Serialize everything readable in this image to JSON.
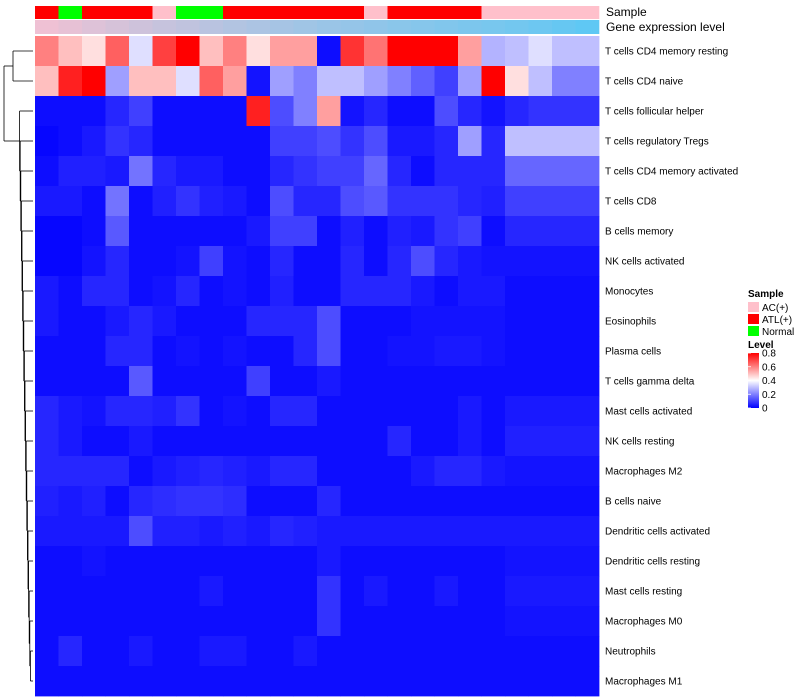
{
  "chart_data": {
    "type": "heatmap",
    "annotation_tracks": [
      {
        "name": "Sample",
        "label": "Sample"
      },
      {
        "name": "Gene expression level",
        "label": "Gene expression level"
      }
    ],
    "sample_track": [
      "ATL(+)",
      "Normal",
      "ATL(+)",
      "ATL(+)",
      "ATL(+)",
      "AC(+)",
      "Normal",
      "Normal",
      "ATL(+)",
      "ATL(+)",
      "ATL(+)",
      "ATL(+)",
      "ATL(+)",
      "ATL(+)",
      "AC(+)",
      "ATL(+)",
      "ATL(+)",
      "ATL(+)",
      "ATL(+)",
      "AC(+)",
      "AC(+)",
      "AC(+)",
      "AC(+)",
      "AC(+)"
    ],
    "expression_track": [
      0.02,
      0.04,
      0.07,
      0.1,
      0.13,
      0.17,
      0.2,
      0.24,
      0.28,
      0.32,
      0.36,
      0.4,
      0.44,
      0.48,
      0.52,
      0.56,
      0.6,
      0.64,
      0.68,
      0.72,
      0.76,
      0.82,
      0.88,
      0.95
    ],
    "rows": [
      "T cells CD4 memory resting",
      "T cells CD4 naive",
      "T cells follicular helper",
      "T cells regulatory  Tregs",
      "T cells CD4 memory activated",
      "T cells CD8",
      "B cells memory",
      "NK cells activated",
      "Monocytes",
      "Eosinophils",
      "Plasma cells",
      "T cells gamma delta",
      "Mast cells activated",
      "NK cells resting",
      "Macrophages M2",
      "B cells naive",
      "Dendritic cells activated",
      "Dendritic cells resting",
      "Mast cells resting",
      "Macrophages M0",
      "Neutrophils",
      "Macrophages M1"
    ],
    "values": [
      [
        0.6,
        0.5,
        0.45,
        0.65,
        0.35,
        0.7,
        0.8,
        0.5,
        0.6,
        0.45,
        0.55,
        0.55,
        0.02,
        0.72,
        0.62,
        0.8,
        0.8,
        0.8,
        0.55,
        0.28,
        0.3,
        0.35,
        0.3,
        0.3
      ],
      [
        0.5,
        0.75,
        0.8,
        0.25,
        0.5,
        0.5,
        0.35,
        0.65,
        0.55,
        0.03,
        0.25,
        0.2,
        0.3,
        0.3,
        0.25,
        0.2,
        0.15,
        0.1,
        0.25,
        0.8,
        0.45,
        0.3,
        0.2,
        0.2
      ],
      [
        0.02,
        0.02,
        0.02,
        0.06,
        0.1,
        0.02,
        0.02,
        0.02,
        0.02,
        0.75,
        0.12,
        0.2,
        0.55,
        0.03,
        0.06,
        0.02,
        0.02,
        0.12,
        0.06,
        0.03,
        0.06,
        0.08,
        0.08,
        0.08
      ],
      [
        0.01,
        0.02,
        0.04,
        0.08,
        0.06,
        0.02,
        0.02,
        0.02,
        0.02,
        0.02,
        0.1,
        0.1,
        0.12,
        0.08,
        0.12,
        0.04,
        0.04,
        0.06,
        0.25,
        0.06,
        0.3,
        0.3,
        0.3,
        0.3
      ],
      [
        0.02,
        0.05,
        0.05,
        0.04,
        0.18,
        0.06,
        0.04,
        0.04,
        0.02,
        0.02,
        0.06,
        0.08,
        0.1,
        0.1,
        0.16,
        0.06,
        0.02,
        0.06,
        0.06,
        0.06,
        0.16,
        0.16,
        0.16,
        0.16
      ],
      [
        0.04,
        0.04,
        0.02,
        0.18,
        0.02,
        0.05,
        0.08,
        0.05,
        0.04,
        0.02,
        0.12,
        0.06,
        0.06,
        0.12,
        0.14,
        0.08,
        0.08,
        0.08,
        0.06,
        0.05,
        0.1,
        0.1,
        0.1,
        0.1
      ],
      [
        0.01,
        0.01,
        0.02,
        0.14,
        0.02,
        0.02,
        0.02,
        0.02,
        0.02,
        0.04,
        0.1,
        0.1,
        0.02,
        0.05,
        0.02,
        0.05,
        0.04,
        0.08,
        0.1,
        0.02,
        0.06,
        0.06,
        0.06,
        0.06
      ],
      [
        0.01,
        0.01,
        0.03,
        0.06,
        0.02,
        0.02,
        0.03,
        0.1,
        0.03,
        0.02,
        0.06,
        0.02,
        0.02,
        0.06,
        0.02,
        0.06,
        0.12,
        0.06,
        0.04,
        0.03,
        0.03,
        0.03,
        0.03,
        0.03
      ],
      [
        0.04,
        0.02,
        0.06,
        0.06,
        0.02,
        0.03,
        0.06,
        0.02,
        0.03,
        0.02,
        0.05,
        0.02,
        0.02,
        0.06,
        0.06,
        0.06,
        0.04,
        0.02,
        0.04,
        0.04,
        0.02,
        0.02,
        0.02,
        0.02
      ],
      [
        0.04,
        0.02,
        0.02,
        0.04,
        0.06,
        0.04,
        0.02,
        0.02,
        0.02,
        0.06,
        0.06,
        0.06,
        0.12,
        0.02,
        0.02,
        0.02,
        0.03,
        0.03,
        0.03,
        0.03,
        0.02,
        0.02,
        0.02,
        0.02
      ],
      [
        0.02,
        0.02,
        0.02,
        0.06,
        0.06,
        0.02,
        0.03,
        0.02,
        0.03,
        0.02,
        0.02,
        0.06,
        0.12,
        0.02,
        0.02,
        0.03,
        0.03,
        0.04,
        0.04,
        0.03,
        0.02,
        0.02,
        0.02,
        0.02
      ],
      [
        0.02,
        0.02,
        0.02,
        0.02,
        0.14,
        0.02,
        0.02,
        0.02,
        0.02,
        0.1,
        0.02,
        0.02,
        0.04,
        0.02,
        0.02,
        0.02,
        0.02,
        0.02,
        0.02,
        0.02,
        0.02,
        0.02,
        0.02,
        0.02
      ],
      [
        0.06,
        0.04,
        0.03,
        0.06,
        0.06,
        0.05,
        0.08,
        0.02,
        0.03,
        0.02,
        0.06,
        0.06,
        0.02,
        0.02,
        0.02,
        0.02,
        0.02,
        0.02,
        0.04,
        0.02,
        0.04,
        0.04,
        0.04,
        0.04
      ],
      [
        0.06,
        0.04,
        0.02,
        0.02,
        0.04,
        0.02,
        0.02,
        0.02,
        0.02,
        0.02,
        0.02,
        0.02,
        0.02,
        0.02,
        0.02,
        0.06,
        0.02,
        0.02,
        0.04,
        0.02,
        0.05,
        0.05,
        0.05,
        0.05
      ],
      [
        0.06,
        0.06,
        0.06,
        0.06,
        0.02,
        0.04,
        0.05,
        0.06,
        0.05,
        0.04,
        0.06,
        0.06,
        0.02,
        0.02,
        0.02,
        0.02,
        0.04,
        0.06,
        0.06,
        0.04,
        0.03,
        0.03,
        0.03,
        0.03
      ],
      [
        0.05,
        0.04,
        0.05,
        0.02,
        0.06,
        0.07,
        0.08,
        0.08,
        0.07,
        0.02,
        0.02,
        0.02,
        0.06,
        0.02,
        0.02,
        0.02,
        0.02,
        0.02,
        0.02,
        0.02,
        0.02,
        0.02,
        0.02,
        0.02
      ],
      [
        0.04,
        0.04,
        0.04,
        0.04,
        0.12,
        0.05,
        0.05,
        0.04,
        0.05,
        0.04,
        0.06,
        0.05,
        0.04,
        0.04,
        0.04,
        0.04,
        0.04,
        0.04,
        0.04,
        0.04,
        0.04,
        0.04,
        0.04,
        0.04
      ],
      [
        0.02,
        0.02,
        0.03,
        0.02,
        0.02,
        0.02,
        0.02,
        0.02,
        0.02,
        0.02,
        0.02,
        0.02,
        0.04,
        0.02,
        0.02,
        0.02,
        0.02,
        0.02,
        0.02,
        0.02,
        0.03,
        0.03,
        0.03,
        0.03
      ],
      [
        0.02,
        0.02,
        0.02,
        0.02,
        0.02,
        0.02,
        0.02,
        0.04,
        0.02,
        0.02,
        0.02,
        0.02,
        0.08,
        0.02,
        0.04,
        0.02,
        0.02,
        0.04,
        0.02,
        0.02,
        0.04,
        0.04,
        0.04,
        0.04
      ],
      [
        0.02,
        0.02,
        0.02,
        0.02,
        0.02,
        0.02,
        0.02,
        0.02,
        0.02,
        0.02,
        0.02,
        0.02,
        0.08,
        0.02,
        0.02,
        0.02,
        0.02,
        0.02,
        0.02,
        0.02,
        0.03,
        0.03,
        0.03,
        0.03
      ],
      [
        0.02,
        0.06,
        0.02,
        0.02,
        0.04,
        0.02,
        0.02,
        0.04,
        0.04,
        0.02,
        0.02,
        0.04,
        0.02,
        0.02,
        0.02,
        0.02,
        0.02,
        0.02,
        0.02,
        0.02,
        0.02,
        0.02,
        0.02,
        0.02
      ],
      [
        0.02,
        0.02,
        0.02,
        0.02,
        0.02,
        0.02,
        0.02,
        0.02,
        0.02,
        0.02,
        0.02,
        0.02,
        0.02,
        0.02,
        0.02,
        0.02,
        0.02,
        0.02,
        0.02,
        0.02,
        0.02,
        0.02,
        0.02,
        0.02
      ]
    ],
    "sample_legend": {
      "title": "Sample",
      "items": [
        {
          "label": "AC(+)",
          "color": "#ffc0cb"
        },
        {
          "label": "ATL(+)",
          "color": "#ff0000"
        },
        {
          "label": "Normal",
          "color": "#00ff00"
        }
      ]
    },
    "level_legend": {
      "title": "Level",
      "ticks": [
        "0.8",
        "0.6",
        "0.4",
        "0.2",
        "0"
      ],
      "tick_values": [
        0.8,
        0.6,
        0.4,
        0.2,
        0
      ],
      "range": [
        0,
        0.8
      ],
      "colors": {
        "low": "#0000ff",
        "mid": "#ffffff",
        "high": "#ff0000"
      }
    },
    "expression_colors": {
      "low": "#ffc0d0",
      "high": "#5ac8f5"
    }
  }
}
